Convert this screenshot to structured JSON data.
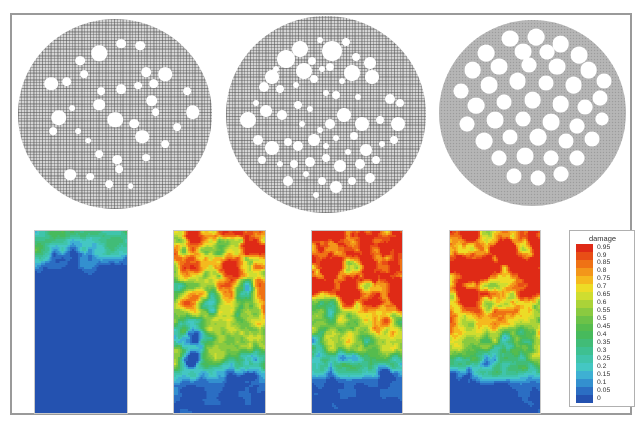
{
  "figure": {
    "description": "Meshed porous circular microstructures (top) and simulated damage fields (bottom)",
    "border_color": "#9a9a9a",
    "background": "#ffffff"
  },
  "chart_data": {
    "type": "heatmap",
    "title": "",
    "legend": {
      "title": "damage",
      "position": "right",
      "range": [
        0,
        0.95
      ],
      "step": 0.05,
      "tick_labels": [
        "0.95",
        "0.9",
        "0.85",
        "0.8",
        "0.75",
        "0.7",
        "0.65",
        "0.6",
        "0.55",
        "0.5",
        "0.45",
        "0.4",
        "0.35",
        "0.3",
        "0.25",
        "0.2",
        "0.15",
        "0.1",
        "0.05",
        "0"
      ]
    },
    "maps_summary": [
      "map 1: low damage overall, scattered 0.2-0.6 patches in top fifth, rest near 0",
      "map 2: high damage (0.8-0.95) upper band with voids, mixed 0.3-0.7 middle, near 0 bottom fifth",
      "map 3: saturated 0.95 upper half with blue voids, mixed middle, near 0 bottom",
      "map 4: saturated 0.95 upper half with blue voids, mixed middle, near 0 bottom"
    ]
  },
  "microstructures": [
    {
      "name": "mesh-circle-1",
      "texture": "crosshatch-mesh",
      "pores": [
        [
          42,
          18,
          8
        ],
        [
          53,
          13,
          5
        ],
        [
          63,
          14,
          5
        ],
        [
          32,
          22,
          5
        ],
        [
          34,
          29,
          4
        ],
        [
          66,
          28,
          5
        ],
        [
          76,
          29,
          7
        ],
        [
          70,
          34,
          5
        ],
        [
          62,
          35,
          4
        ],
        [
          53,
          37,
          5
        ],
        [
          43,
          38,
          4
        ],
        [
          17,
          34,
          7
        ],
        [
          25,
          33,
          5
        ],
        [
          87,
          38,
          4
        ],
        [
          69,
          43,
          6
        ],
        [
          90,
          49,
          7
        ],
        [
          71,
          49,
          4
        ],
        [
          42,
          45,
          6
        ],
        [
          50,
          53,
          8
        ],
        [
          60,
          55,
          5
        ],
        [
          21,
          52,
          8
        ],
        [
          18,
          59,
          4
        ],
        [
          64,
          62,
          7
        ],
        [
          76,
          66,
          4
        ],
        [
          31,
          59,
          3
        ],
        [
          42,
          71,
          4
        ],
        [
          51,
          74,
          5
        ],
        [
          66,
          73,
          4
        ],
        [
          52,
          79,
          4
        ],
        [
          27,
          82,
          6
        ],
        [
          37,
          83,
          4
        ],
        [
          47,
          87,
          4
        ],
        [
          58,
          88,
          3
        ],
        [
          28,
          47,
          3
        ],
        [
          82,
          57,
          4
        ],
        [
          36,
          64,
          3
        ]
      ]
    },
    {
      "name": "mesh-circle-2",
      "texture": "crosshatch-mesh",
      "pores": [
        [
          37,
          17,
          8
        ],
        [
          53,
          18,
          10
        ],
        [
          30,
          22,
          9
        ],
        [
          43,
          23,
          4
        ],
        [
          65,
          21,
          4
        ],
        [
          72,
          24,
          6
        ],
        [
          23,
          31,
          7
        ],
        [
          39,
          28,
          8
        ],
        [
          48,
          27,
          3
        ],
        [
          52,
          26,
          4
        ],
        [
          63,
          29,
          8
        ],
        [
          73,
          31,
          7
        ],
        [
          19,
          36,
          5
        ],
        [
          27,
          37,
          4
        ],
        [
          35,
          35,
          3
        ],
        [
          44,
          32,
          4
        ],
        [
          55,
          40,
          4
        ],
        [
          50,
          39,
          3
        ],
        [
          82,
          42,
          5
        ],
        [
          87,
          44,
          4
        ],
        [
          11,
          53,
          8
        ],
        [
          20,
          48,
          6
        ],
        [
          28,
          50,
          5
        ],
        [
          36,
          45,
          4
        ],
        [
          42,
          47,
          3
        ],
        [
          59,
          50,
          7
        ],
        [
          52,
          55,
          5
        ],
        [
          68,
          55,
          7
        ],
        [
          77,
          53,
          4
        ],
        [
          86,
          55,
          7
        ],
        [
          16,
          63,
          5
        ],
        [
          23,
          67,
          7
        ],
        [
          31,
          64,
          4
        ],
        [
          36,
          66,
          5
        ],
        [
          44,
          63,
          6
        ],
        [
          55,
          62,
          3
        ],
        [
          64,
          61,
          4
        ],
        [
          70,
          68,
          6
        ],
        [
          78,
          65,
          3
        ],
        [
          84,
          63,
          4
        ],
        [
          18,
          73,
          4
        ],
        [
          27,
          75,
          3
        ],
        [
          34,
          75,
          4
        ],
        [
          42,
          74,
          5
        ],
        [
          50,
          72,
          4
        ],
        [
          57,
          76,
          6
        ],
        [
          67,
          75,
          5
        ],
        [
          75,
          73,
          4
        ],
        [
          31,
          84,
          5
        ],
        [
          40,
          80,
          3
        ],
        [
          48,
          84,
          4
        ],
        [
          55,
          87,
          6
        ],
        [
          63,
          84,
          4
        ],
        [
          72,
          82,
          5
        ],
        [
          45,
          91,
          3
        ],
        [
          60,
          13,
          4
        ],
        [
          47,
          12,
          3
        ],
        [
          25,
          27,
          3
        ],
        [
          58,
          33,
          3
        ],
        [
          15,
          44,
          3
        ],
        [
          66,
          41,
          3
        ],
        [
          47,
          58,
          3
        ],
        [
          61,
          69,
          3
        ],
        [
          38,
          55,
          3
        ],
        [
          50,
          66,
          3
        ]
      ]
    },
    {
      "name": "mesh-circle-3",
      "texture": "stipple-mesh",
      "pores": [
        [
          38,
          10,
          9
        ],
        [
          52,
          9,
          9
        ],
        [
          65,
          13,
          9
        ],
        [
          25,
          18,
          9
        ],
        [
          45,
          17,
          9
        ],
        [
          58,
          17,
          8
        ],
        [
          75,
          19,
          9
        ],
        [
          18,
          27,
          9
        ],
        [
          32,
          25,
          9
        ],
        [
          48,
          24,
          8
        ],
        [
          63,
          25,
          9
        ],
        [
          80,
          27,
          9
        ],
        [
          88,
          33,
          8
        ],
        [
          12,
          38,
          8
        ],
        [
          27,
          35,
          9
        ],
        [
          42,
          33,
          9
        ],
        [
          57,
          34,
          8
        ],
        [
          72,
          35,
          9
        ],
        [
          86,
          42,
          8
        ],
        [
          20,
          46,
          9
        ],
        [
          35,
          44,
          8
        ],
        [
          50,
          43,
          9
        ],
        [
          65,
          45,
          9
        ],
        [
          78,
          47,
          8
        ],
        [
          15,
          56,
          8
        ],
        [
          30,
          54,
          9
        ],
        [
          45,
          53,
          8
        ],
        [
          60,
          55,
          9
        ],
        [
          74,
          57,
          8
        ],
        [
          87,
          53,
          7
        ],
        [
          24,
          65,
          9
        ],
        [
          38,
          63,
          8
        ],
        [
          53,
          63,
          9
        ],
        [
          68,
          65,
          8
        ],
        [
          82,
          64,
          8
        ],
        [
          32,
          74,
          8
        ],
        [
          46,
          73,
          9
        ],
        [
          60,
          74,
          8
        ],
        [
          74,
          74,
          8
        ],
        [
          40,
          84,
          8
        ],
        [
          53,
          85,
          8
        ],
        [
          65,
          83,
          8
        ]
      ]
    }
  ],
  "damage_maps": [
    {
      "name": "damage-map-1",
      "seed": 101,
      "noise_amp": 0.28,
      "profile": [
        [
          0,
          0.32
        ],
        [
          0.1,
          0.28
        ],
        [
          0.16,
          0.18
        ],
        [
          0.22,
          0.05
        ],
        [
          0.28,
          0.01
        ],
        [
          1,
          0.01
        ]
      ]
    },
    {
      "name": "damage-map-2",
      "seed": 202,
      "noise_amp": 0.5,
      "profile": [
        [
          0,
          0.88
        ],
        [
          0.25,
          0.8
        ],
        [
          0.42,
          0.55
        ],
        [
          0.58,
          0.48
        ],
        [
          0.7,
          0.38
        ],
        [
          0.78,
          0.15
        ],
        [
          0.85,
          0.03
        ],
        [
          1,
          0.01
        ]
      ]
    },
    {
      "name": "damage-map-3",
      "seed": 303,
      "noise_amp": 0.45,
      "profile": [
        [
          0,
          0.97
        ],
        [
          0.35,
          0.95
        ],
        [
          0.5,
          0.6
        ],
        [
          0.65,
          0.5
        ],
        [
          0.75,
          0.25
        ],
        [
          0.82,
          0.04
        ],
        [
          1,
          0.01
        ]
      ]
    },
    {
      "name": "damage-map-4",
      "seed": 404,
      "noise_amp": 0.45,
      "profile": [
        [
          0,
          0.97
        ],
        [
          0.33,
          0.95
        ],
        [
          0.5,
          0.62
        ],
        [
          0.68,
          0.45
        ],
        [
          0.78,
          0.2
        ],
        [
          0.85,
          0.03
        ],
        [
          1,
          0.01
        ]
      ]
    }
  ],
  "legend": {
    "title": "damage",
    "entries": [
      {
        "label": "0.95",
        "color": "#df2a16"
      },
      {
        "label": "0.9",
        "color": "#e84e16"
      },
      {
        "label": "0.85",
        "color": "#ef7215"
      },
      {
        "label": "0.8",
        "color": "#f3961a"
      },
      {
        "label": "0.75",
        "color": "#f5b91e"
      },
      {
        "label": "0.7",
        "color": "#eddc26"
      },
      {
        "label": "0.65",
        "color": "#cfdd30"
      },
      {
        "label": "0.6",
        "color": "#abd338"
      },
      {
        "label": "0.55",
        "color": "#8aca40"
      },
      {
        "label": "0.5",
        "color": "#6cc248"
      },
      {
        "label": "0.45",
        "color": "#55bc4e"
      },
      {
        "label": "0.4",
        "color": "#47ba5c"
      },
      {
        "label": "0.35",
        "color": "#41bc77"
      },
      {
        "label": "0.3",
        "color": "#3ec091"
      },
      {
        "label": "0.25",
        "color": "#40c4ab"
      },
      {
        "label": "0.2",
        "color": "#44c7c3"
      },
      {
        "label": "0.15",
        "color": "#3eb0d3"
      },
      {
        "label": "0.1",
        "color": "#3390cf"
      },
      {
        "label": "0.05",
        "color": "#2b6ec3"
      },
      {
        "label": "0",
        "color": "#2452b0"
      }
    ]
  }
}
